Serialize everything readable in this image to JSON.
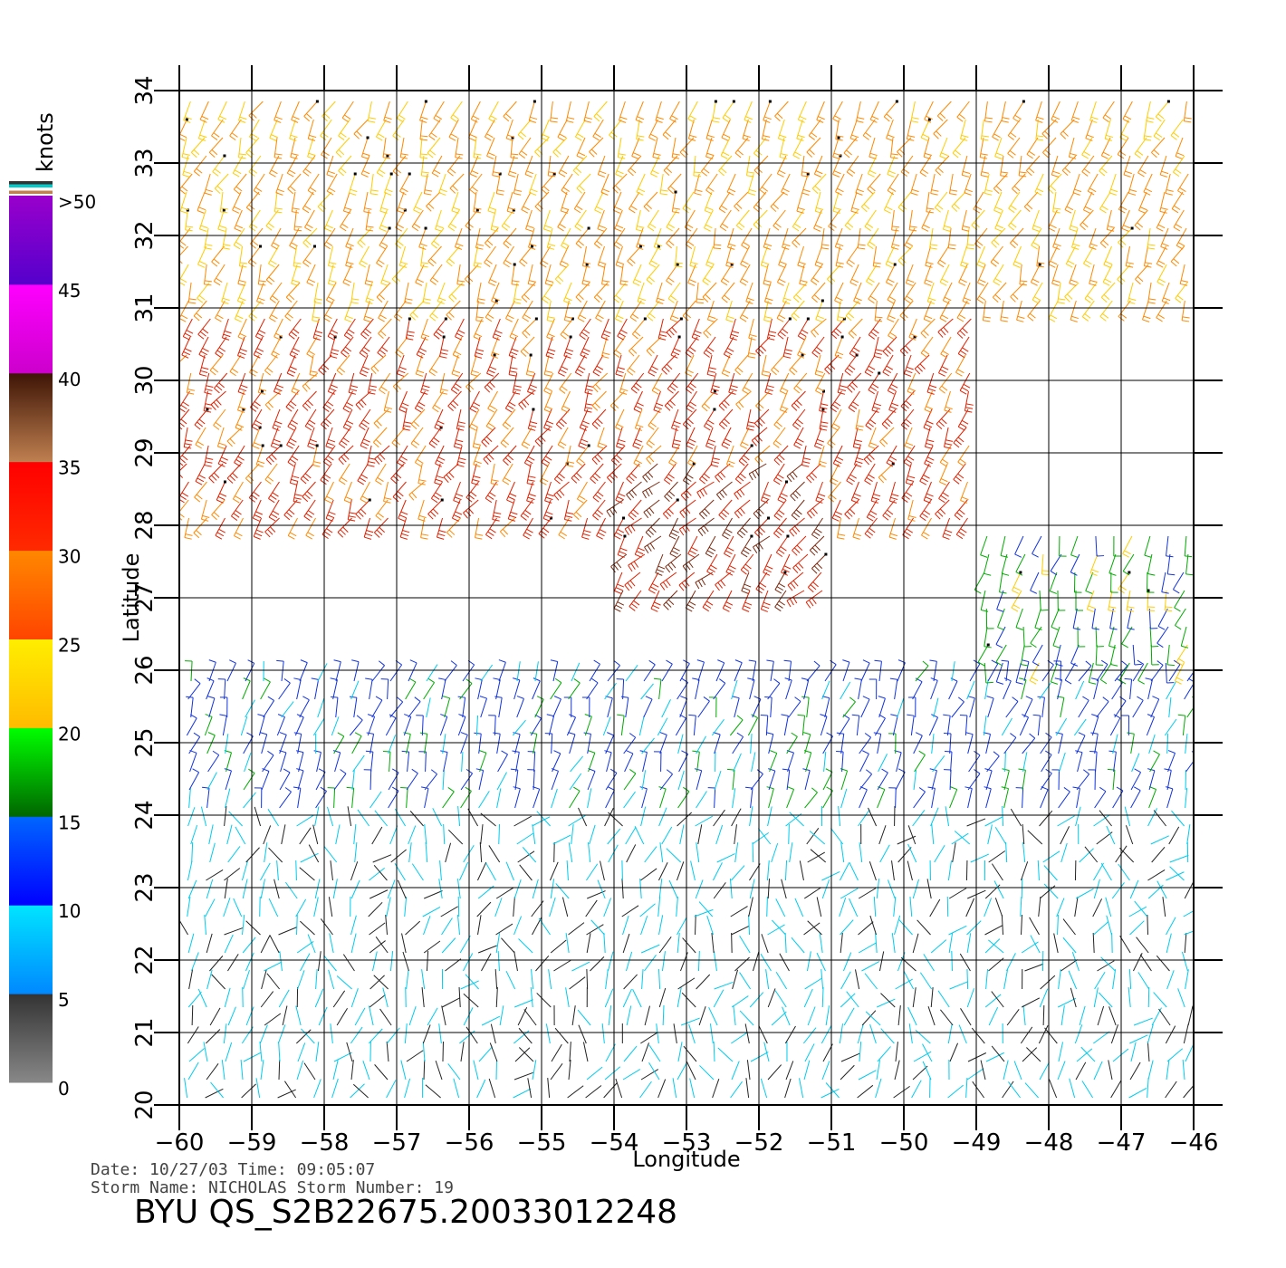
{
  "chart_data": {
    "type": "wind-barb-map",
    "x_label": "Longitude",
    "y_label": "Latitude",
    "xlim": [
      -60,
      -46
    ],
    "ylim": [
      20,
      34
    ],
    "x_ticks": [
      -60,
      -59,
      -58,
      -57,
      -56,
      -55,
      -54,
      -53,
      -52,
      -51,
      -50,
      -49,
      -48,
      -47,
      -46
    ],
    "y_ticks": [
      20,
      21,
      22,
      23,
      24,
      25,
      26,
      27,
      28,
      29,
      30,
      31,
      32,
      33,
      34
    ],
    "grid": true,
    "colorbar": {
      "title": "knots",
      "labels": [
        ">50",
        "45",
        "40",
        "35",
        "30",
        "25",
        "20",
        "15",
        "10",
        "5",
        "0"
      ],
      "segments": [
        {
          "from": 0,
          "to": 5,
          "top": "#333333",
          "bottom": "#888888"
        },
        {
          "from": 5,
          "to": 10,
          "top": "#00e5ff",
          "bottom": "#0088ff"
        },
        {
          "from": 10,
          "to": 15,
          "top": "#0066ff",
          "bottom": "#0000ff"
        },
        {
          "from": 15,
          "to": 20,
          "top": "#00ff00",
          "bottom": "#006600"
        },
        {
          "from": 20,
          "to": 25,
          "top": "#ffee00",
          "bottom": "#ffbb00"
        },
        {
          "from": 25,
          "to": 30,
          "top": "#ff8800",
          "bottom": "#ff4400"
        },
        {
          "from": 30,
          "to": 35,
          "top": "#ff0000",
          "bottom": "#ff2a00"
        },
        {
          "from": 35,
          "to": 40,
          "top": "#3d1405",
          "bottom": "#c08050"
        },
        {
          "from": 40,
          "to": 45,
          "top": "#ff00ff",
          "bottom": "#cc00cc"
        },
        {
          "from": 45,
          "to": 50,
          "top": "#9900cc",
          "bottom": "#5500cc"
        }
      ],
      "top_stripes": [
        "#333333",
        "#00cccc",
        "#ffffff",
        "#c08050"
      ]
    },
    "wind_field": {
      "units": "knots",
      "regions": [
        {
          "lat": [
            31,
            34
          ],
          "lon": [
            -60,
            -46
          ],
          "speed_knots": 26,
          "direction_deg": 245
        },
        {
          "lat": [
            28,
            31
          ],
          "lon": [
            -60,
            -49
          ],
          "speed_knots": 31,
          "direction_deg": 240
        },
        {
          "lat": [
            27,
            29
          ],
          "lon": [
            -54,
            -51
          ],
          "speed_knots": 34,
          "direction_deg": 230
        },
        {
          "lat": [
            26,
            28
          ],
          "lon": [
            -49,
            -46
          ],
          "speed_knots": 17,
          "direction_deg": 255
        },
        {
          "lat": [
            24,
            26
          ],
          "lon": [
            -60,
            -46
          ],
          "speed_knots": 12,
          "direction_deg": 70
        },
        {
          "lat": [
            20,
            24
          ],
          "lon": [
            -60,
            -46
          ],
          "speed_knots": 6,
          "direction_deg": 80
        }
      ]
    }
  },
  "info": {
    "date_line": "Date: 10/27/03   Time: 09:05:07",
    "storm_line": "Storm Name: NICHOLAS   Storm Number: 19",
    "title": "BYU  QS_S2B22675.20033012248"
  }
}
